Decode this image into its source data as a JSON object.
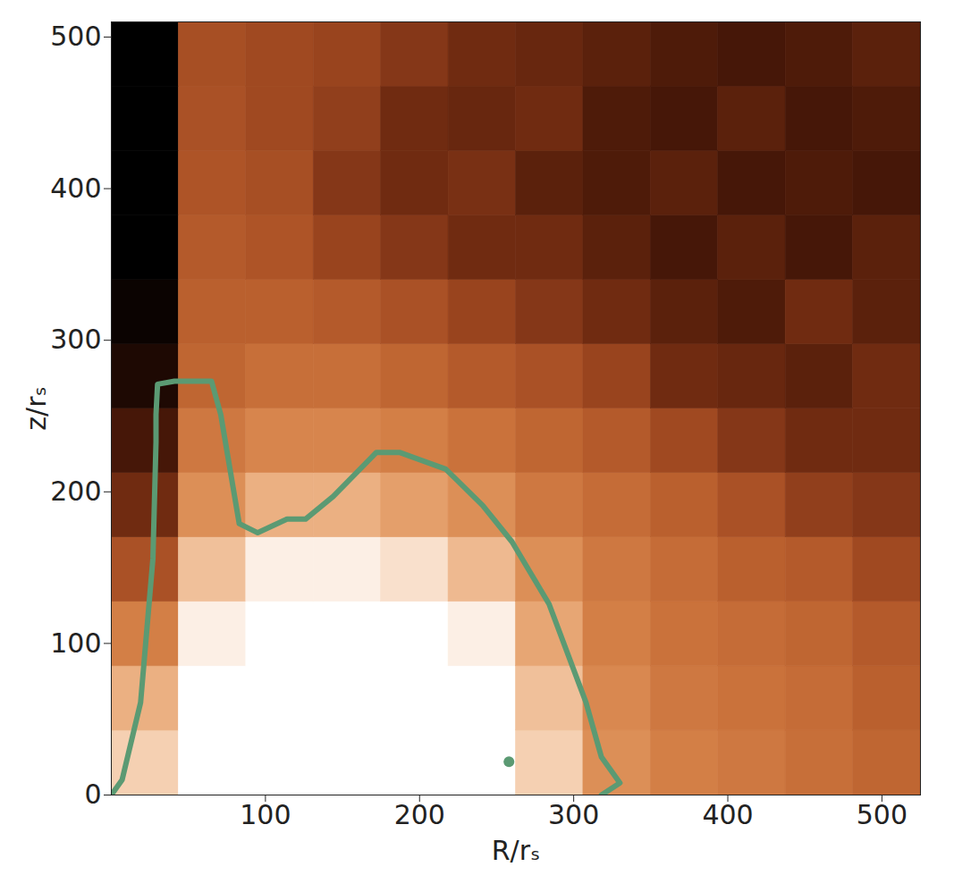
{
  "chart_data": {
    "type": "heatmap",
    "x_label": "R/rₛ",
    "y_label": "z/rₛ",
    "xlim": [
      0,
      525
    ],
    "ylim": [
      0,
      510
    ],
    "xticks": [
      100,
      200,
      300,
      400,
      500
    ],
    "yticks": [
      0,
      100,
      200,
      300,
      400,
      500
    ],
    "cells": {
      "x_edges": [
        0,
        43.75,
        87.5,
        131.25,
        175,
        218.75,
        262.5,
        306.25,
        350,
        393.75,
        437.5,
        481.25,
        525
      ],
      "y_edges": [
        0,
        42.5,
        85,
        127.5,
        170,
        212.5,
        255,
        297.5,
        340,
        382.5,
        425,
        467.5,
        510
      ],
      "values": [
        [
          0.85,
          1,
          1,
          1,
          1,
          1,
          0.85,
          0.65,
          0.6,
          0.58,
          0.55,
          0.52
        ],
        [
          0.75,
          1,
          1,
          1,
          1,
          1,
          0.8,
          0.63,
          0.58,
          0.56,
          0.54,
          0.5
        ],
        [
          0.6,
          0.95,
          1,
          1,
          1,
          0.95,
          0.72,
          0.6,
          0.56,
          0.54,
          0.52,
          0.48
        ],
        [
          0.45,
          0.8,
          0.95,
          0.95,
          0.9,
          0.78,
          0.65,
          0.58,
          0.54,
          0.5,
          0.48,
          0.42
        ],
        [
          0.3,
          0.65,
          0.75,
          0.75,
          0.7,
          0.65,
          0.58,
          0.54,
          0.5,
          0.45,
          0.38,
          0.35
        ],
        [
          0.2,
          0.58,
          0.62,
          0.62,
          0.6,
          0.56,
          0.52,
          0.48,
          0.42,
          0.35,
          0.3,
          0.3
        ],
        [
          0.1,
          0.52,
          0.55,
          0.55,
          0.52,
          0.48,
          0.45,
          0.4,
          0.3,
          0.28,
          0.25,
          0.3
        ],
        [
          0.05,
          0.5,
          0.5,
          0.48,
          0.45,
          0.4,
          0.35,
          0.3,
          0.25,
          0.22,
          0.3,
          0.25
        ],
        [
          0.02,
          0.48,
          0.46,
          0.4,
          0.35,
          0.3,
          0.3,
          0.25,
          0.2,
          0.25,
          0.2,
          0.25
        ],
        [
          0.02,
          0.46,
          0.44,
          0.35,
          0.3,
          0.32,
          0.25,
          0.22,
          0.25,
          0.2,
          0.22,
          0.2
        ],
        [
          0.02,
          0.45,
          0.42,
          0.38,
          0.3,
          0.28,
          0.3,
          0.22,
          0.2,
          0.25,
          0.2,
          0.22
        ],
        [
          0.02,
          0.44,
          0.42,
          0.4,
          0.35,
          0.3,
          0.28,
          0.25,
          0.22,
          0.2,
          0.22,
          0.25
        ]
      ]
    },
    "contours": [
      {
        "color": "#5b9a73",
        "line_style": "solid",
        "x": [
          0,
          7,
          19,
          27,
          29,
          29,
          30,
          41,
          65,
          71,
          83,
          95,
          114,
          126,
          144,
          172,
          187,
          217,
          241,
          260,
          284,
          308,
          318,
          330,
          318
        ],
        "y": [
          0,
          10,
          61,
          156,
          233,
          251,
          271,
          273,
          273,
          251,
          179,
          173,
          182,
          182,
          197,
          226,
          226,
          215,
          191,
          167,
          126,
          61,
          25,
          8,
          0
        ]
      },
      {
        "color": "#5b9a73",
        "marker": "dot",
        "x": [
          258
        ],
        "y": [
          22
        ]
      }
    ]
  }
}
